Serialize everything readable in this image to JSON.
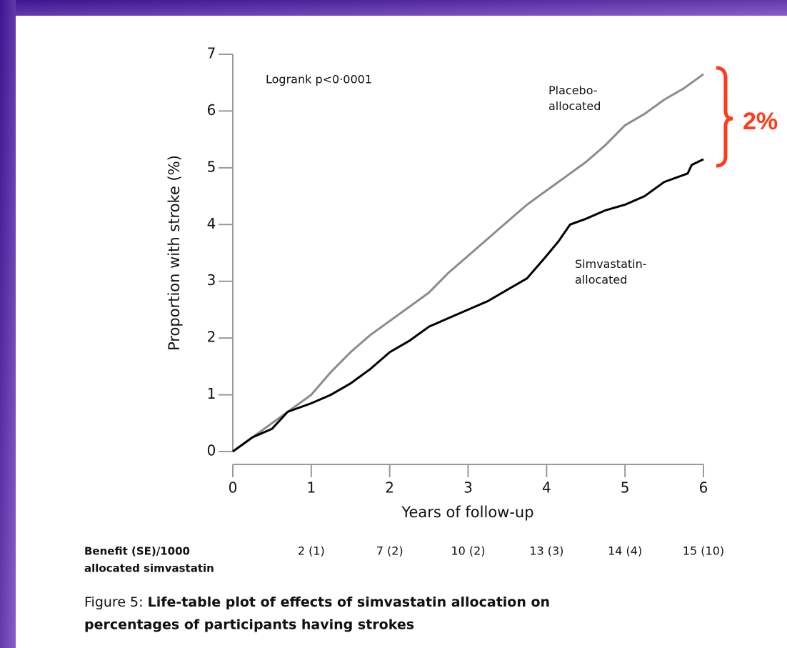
{
  "chart_data": {
    "type": "line",
    "xlabel": "Years of follow-up",
    "ylabel": "Proportion with stroke (%)",
    "xlim": [
      0,
      6
    ],
    "ylim": [
      0,
      7
    ],
    "xticks": [
      0,
      1,
      2,
      3,
      4,
      5,
      6
    ],
    "yticks": [
      0,
      1,
      2,
      3,
      4,
      5,
      6,
      7
    ],
    "grid": false,
    "series": [
      {
        "name": "Placebo-allocated",
        "color": "#8c8c8c",
        "x": [
          0,
          0.25,
          0.5,
          0.75,
          1,
          1.25,
          1.5,
          1.75,
          2,
          2.25,
          2.5,
          2.75,
          3,
          3.25,
          3.5,
          3.75,
          4,
          4.25,
          4.5,
          4.75,
          5,
          5.25,
          5.5,
          5.75,
          6
        ],
        "values": [
          0,
          0.25,
          0.5,
          0.75,
          1.0,
          1.4,
          1.75,
          2.05,
          2.3,
          2.55,
          2.8,
          3.15,
          3.45,
          3.75,
          4.05,
          4.35,
          4.6,
          4.85,
          5.1,
          5.4,
          5.75,
          5.95,
          6.2,
          6.4,
          6.65
        ]
      },
      {
        "name": "Simvastatin-allocated",
        "color": "#000000",
        "x": [
          0,
          0.25,
          0.5,
          0.7,
          1,
          1.25,
          1.5,
          1.75,
          2,
          2.25,
          2.5,
          2.75,
          3,
          3.25,
          3.5,
          3.75,
          4,
          4.15,
          4.3,
          4.5,
          4.75,
          5,
          5.25,
          5.5,
          5.8,
          5.85,
          6
        ],
        "values": [
          0,
          0.25,
          0.4,
          0.7,
          0.85,
          1.0,
          1.2,
          1.45,
          1.75,
          1.95,
          2.2,
          2.35,
          2.5,
          2.65,
          2.85,
          3.05,
          3.45,
          3.7,
          4.0,
          4.1,
          4.25,
          4.35,
          4.5,
          4.75,
          4.9,
          5.05,
          5.15
        ]
      }
    ],
    "annotations": [
      "Logrank p<0·0001",
      "2%"
    ],
    "benefit_label": [
      "Benefit (SE)/1000",
      "allocated simvastatin"
    ],
    "benefit_values": [
      "2 (1)",
      "7 (2)",
      "10 (2)",
      "13 (3)",
      "14 (4)",
      "15 (10)"
    ],
    "caption_label": "Figure 5:",
    "caption_lines": [
      "Life-table plot of effects of simvastatin allocation on",
      "percentages of participants having strokes"
    ]
  }
}
